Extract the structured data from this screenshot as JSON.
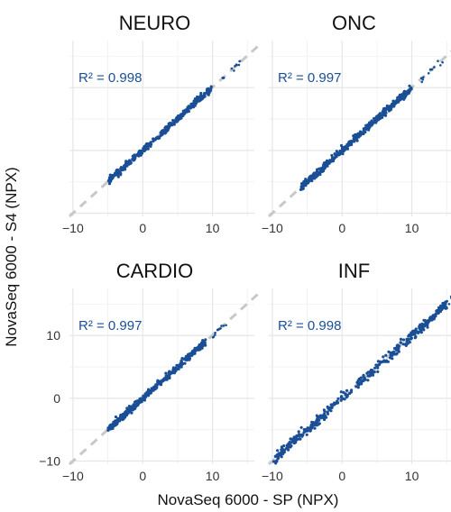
{
  "chart_data": {
    "type": "scatter",
    "shared_xlabel": "NovaSeq 6000 - SP (NPX)",
    "shared_ylabel": "NovaSeq 6000 - S4 (NPX)",
    "x_ticks": [
      -10,
      0,
      10
    ],
    "y_ticks": [
      -10,
      0,
      10
    ],
    "xlim": [
      -10.5,
      16
    ],
    "ylim": [
      -10.5,
      17.5
    ],
    "identity_line": true,
    "grid": true,
    "point_color": "#1a4f96",
    "line_color": "#c8c8c8",
    "panels": [
      {
        "title": "NEURO",
        "r2_label": "R² = 0.998",
        "x_range": [
          -5,
          10
        ],
        "spread": 0.25,
        "tail": [
          11,
          14
        ]
      },
      {
        "title": "ONC",
        "r2_label": "R² = 0.997",
        "x_range": [
          -6,
          10
        ],
        "spread": 0.3,
        "tail": [
          11,
          14.5
        ]
      },
      {
        "title": "CARDIO",
        "r2_label": "R² = 0.997",
        "x_range": [
          -5,
          9
        ],
        "spread": 0.25,
        "tail": [
          10,
          12
        ]
      },
      {
        "title": "INF",
        "r2_label": "R² = 0.998",
        "x_range": [
          -10,
          15
        ],
        "spread": 0.4,
        "tail": [
          13,
          16
        ]
      }
    ]
  }
}
